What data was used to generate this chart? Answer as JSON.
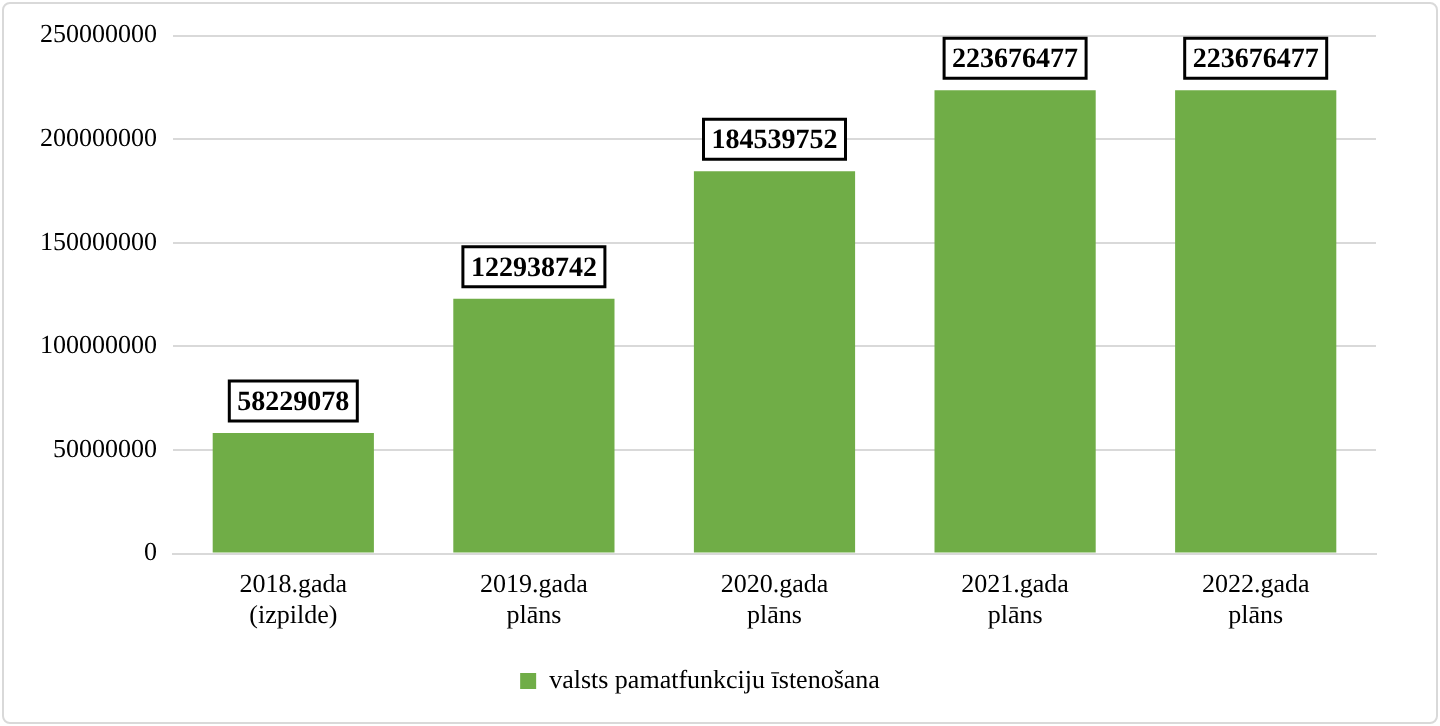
{
  "chart_data": {
    "type": "bar",
    "categories": [
      "2018.gada\n(izpilde)",
      "2019.gada\nplāns",
      "2020.gada\nplāns",
      "2021.gada\nplāns",
      "2022.gada\nplāns"
    ],
    "series": [
      {
        "name": "valsts pamatfunkciju īstenošana",
        "color": "#70ad47",
        "values": [
          58229078,
          122938742,
          184539752,
          223676477,
          223676477
        ]
      }
    ],
    "ylim": [
      0,
      250000000
    ],
    "yticks": [
      0,
      50000000,
      100000000,
      150000000,
      200000000,
      250000000
    ],
    "grid": "y",
    "legend": "bottom",
    "data_labels": true
  }
}
